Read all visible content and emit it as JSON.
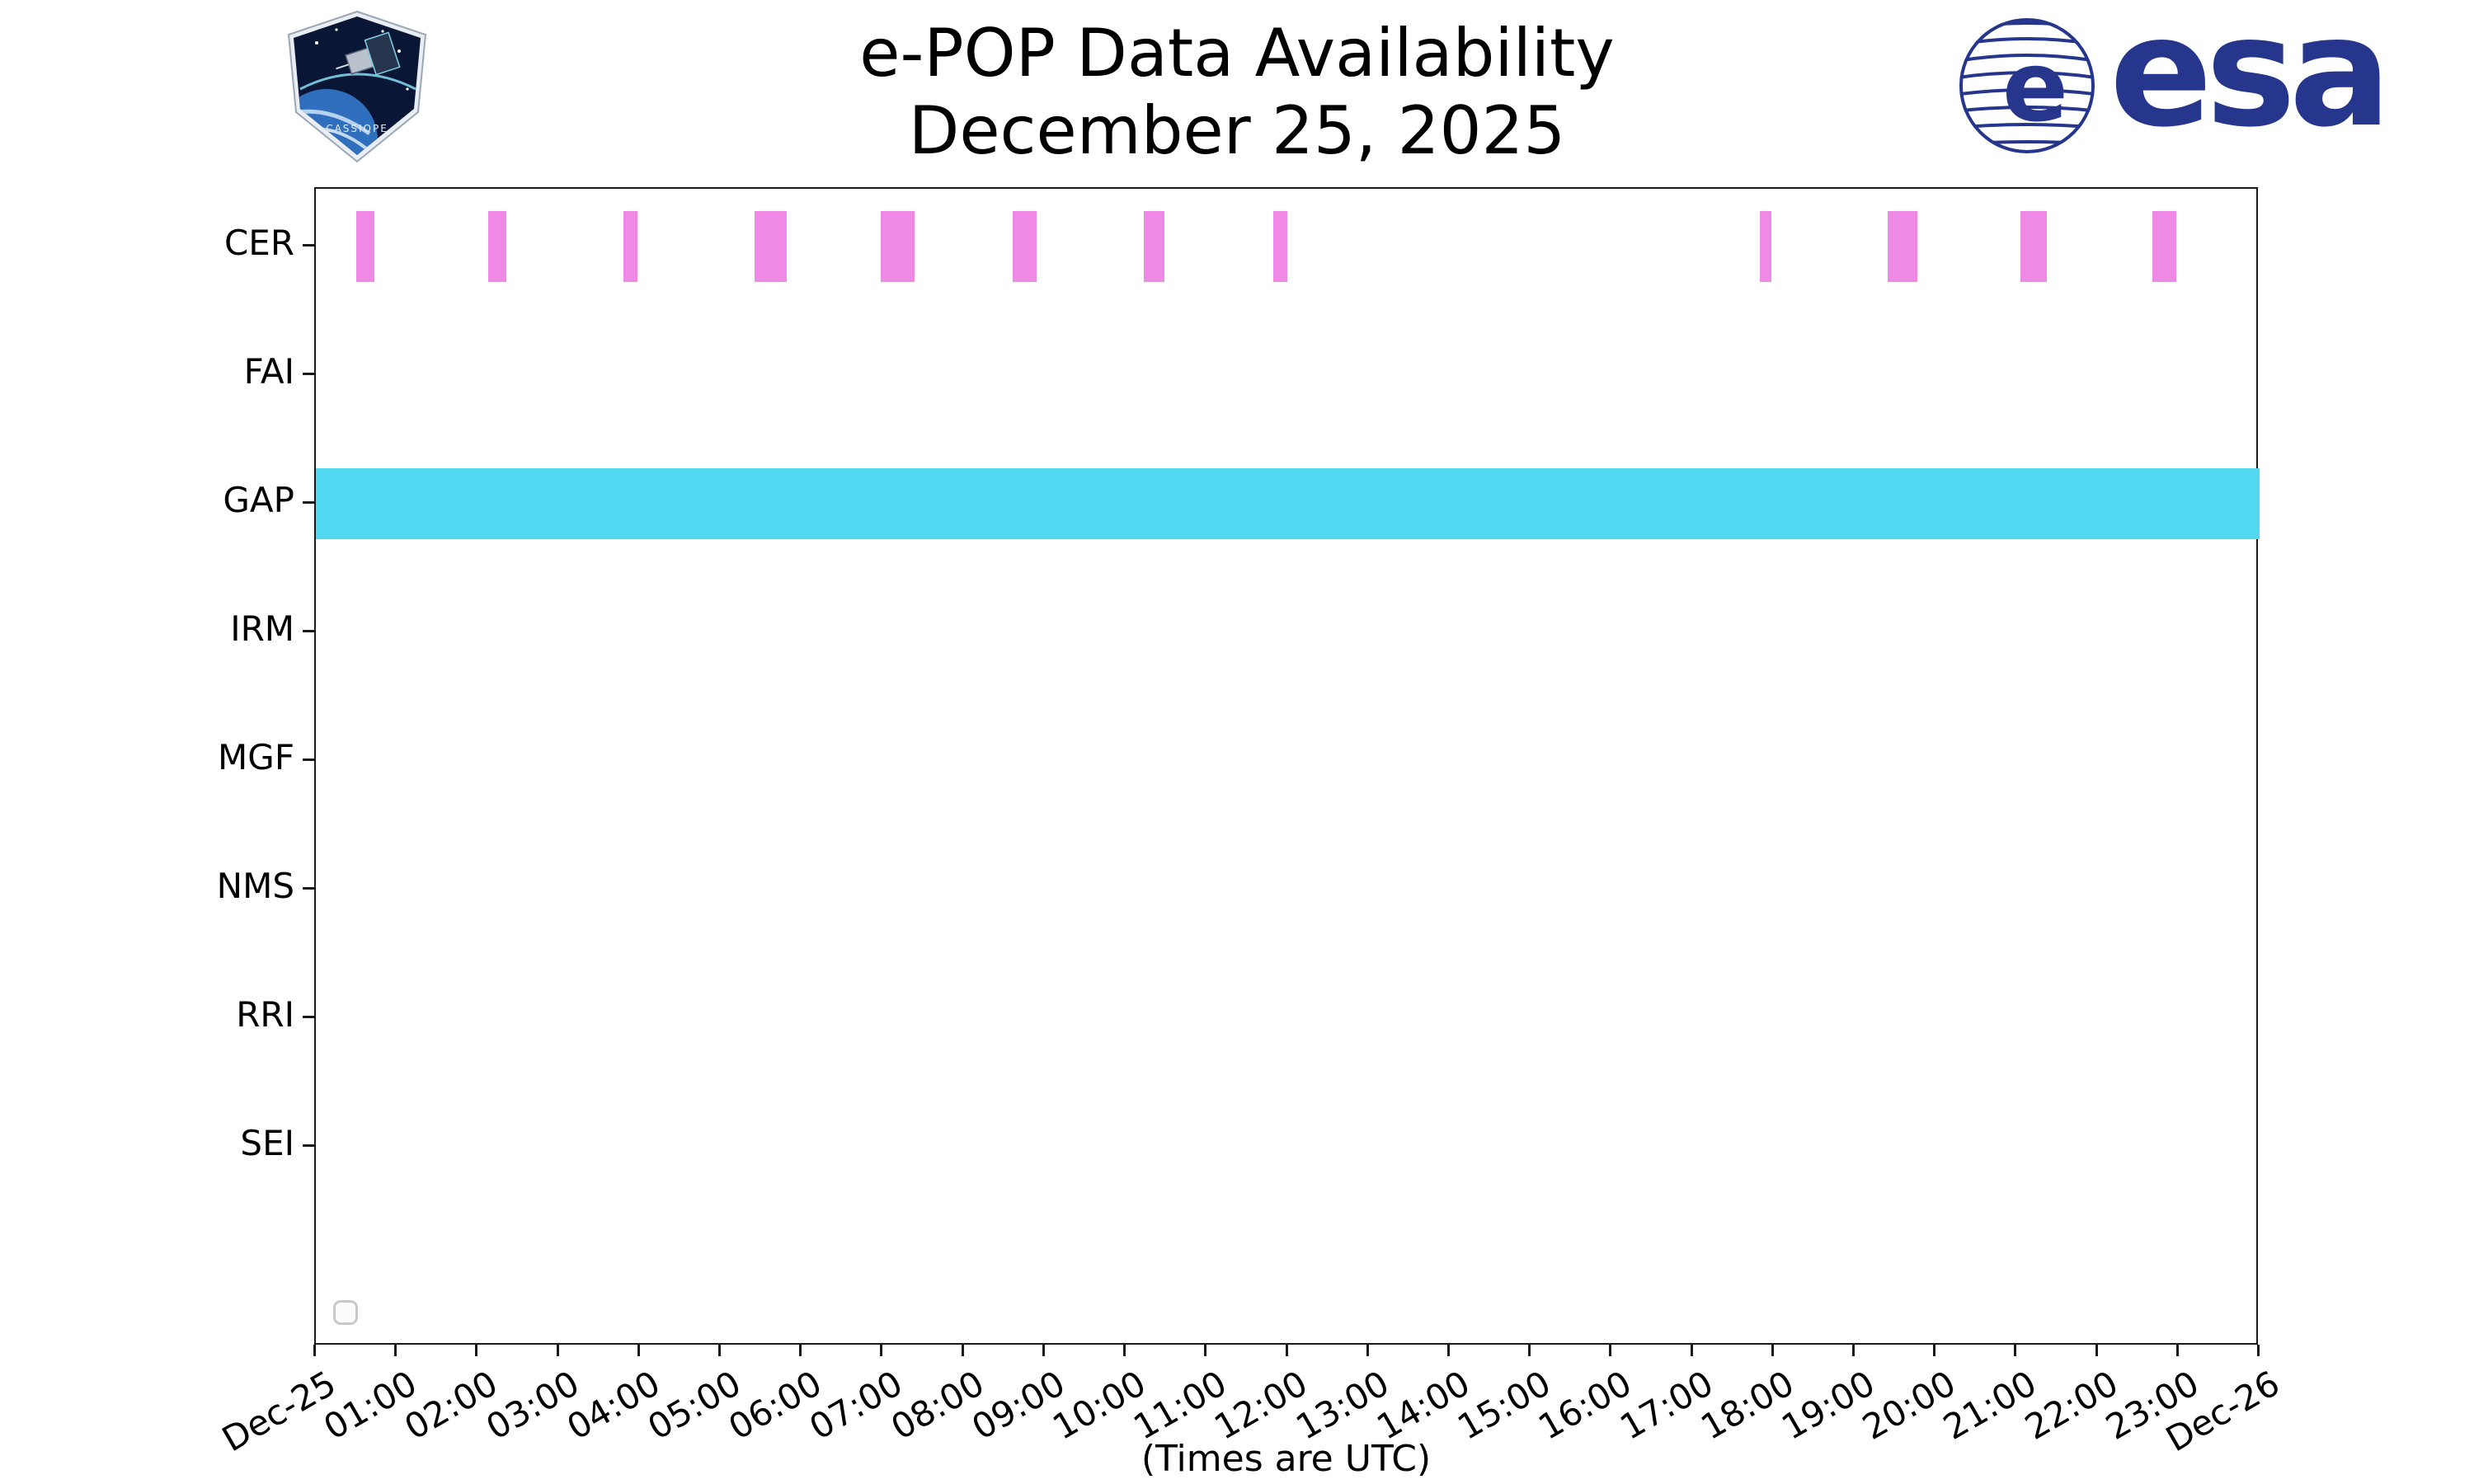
{
  "header": {
    "esa_logo_text": "esa",
    "patch_text": "CASSIOPE"
  },
  "colors": {
    "cer_bar": "#ee8ae6",
    "gap_bar": "#52d8f0",
    "esa_blue": "#25368c",
    "axis": "#1a1a1a"
  },
  "chart_data": {
    "type": "availability-timeline",
    "title": "e-POP Data Availability",
    "subtitle": "December 25, 2025",
    "xlabel": "(Times are UTC)",
    "grid": false,
    "x_axis": {
      "start_hour": 0,
      "end_hour": 24,
      "tick_hours": [
        0,
        1,
        2,
        3,
        4,
        5,
        6,
        7,
        8,
        9,
        10,
        11,
        12,
        13,
        14,
        15,
        16,
        17,
        18,
        19,
        20,
        21,
        22,
        23,
        24
      ],
      "tick_labels": [
        "Dec-25",
        "01:00",
        "02:00",
        "03:00",
        "04:00",
        "05:00",
        "06:00",
        "07:00",
        "08:00",
        "09:00",
        "10:00",
        "11:00",
        "12:00",
        "13:00",
        "14:00",
        "15:00",
        "16:00",
        "17:00",
        "18:00",
        "19:00",
        "20:00",
        "21:00",
        "22:00",
        "23:00",
        "Dec-26"
      ]
    },
    "rows": [
      "CER",
      "FAI",
      "GAP",
      "IRM",
      "MGF",
      "NMS",
      "RRI",
      "SEI"
    ],
    "series": [
      {
        "row": "CER",
        "color": "#ee8ae6",
        "intervals": [
          [
            0.5,
            0.72
          ],
          [
            2.13,
            2.35
          ],
          [
            3.8,
            3.97
          ],
          [
            5.42,
            5.81
          ],
          [
            6.98,
            7.39
          ],
          [
            8.6,
            8.9
          ],
          [
            10.22,
            10.48
          ],
          [
            11.82,
            12.0
          ],
          [
            17.83,
            17.97
          ],
          [
            19.41,
            19.77
          ],
          [
            21.05,
            21.37
          ],
          [
            22.68,
            22.97
          ]
        ]
      },
      {
        "row": "GAP",
        "color": "#52d8f0",
        "intervals": [
          [
            0,
            24
          ]
        ]
      }
    ]
  }
}
